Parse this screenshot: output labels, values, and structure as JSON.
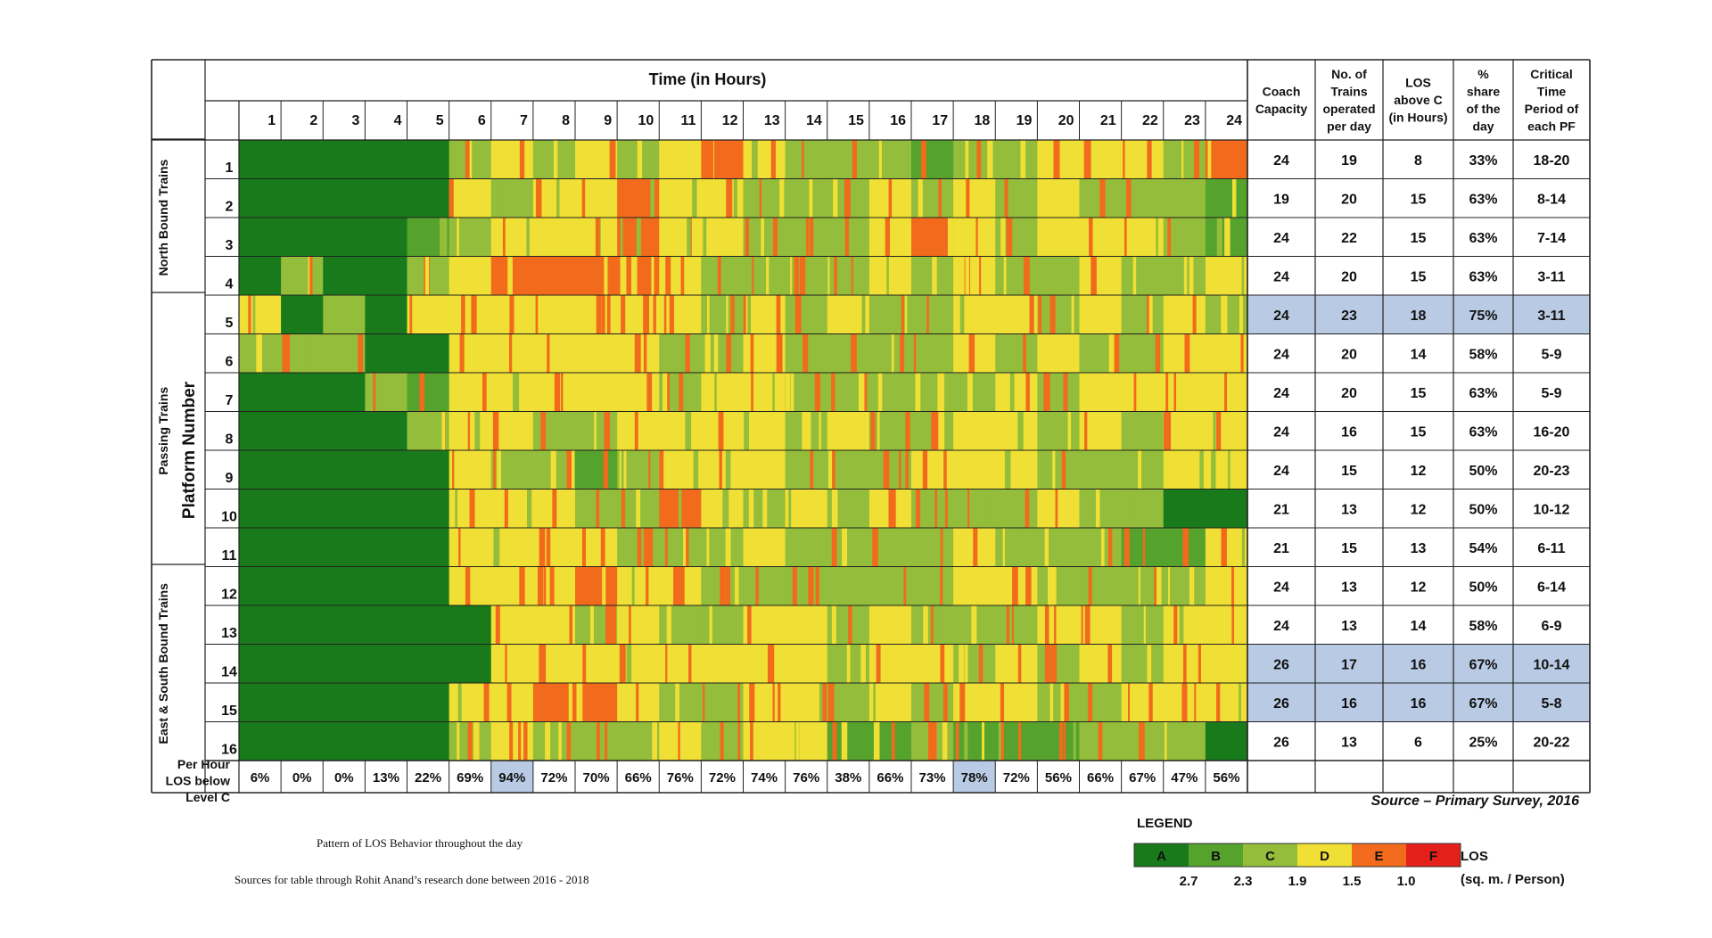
{
  "chart_data": {
    "type": "heatmap",
    "title": "Time (in Hours)",
    "xlabel": "Time (in Hours)",
    "ylabel": "Platform Number",
    "hours": [
      "1",
      "2",
      "3",
      "4",
      "5",
      "6",
      "7",
      "8",
      "9",
      "10",
      "11",
      "12",
      "13",
      "14",
      "15",
      "16",
      "17",
      "18",
      "19",
      "20",
      "21",
      "22",
      "23",
      "24"
    ],
    "platforms": [
      "1",
      "2",
      "3",
      "4",
      "5",
      "6",
      "7",
      "8",
      "9",
      "10",
      "11",
      "12",
      "13",
      "14",
      "15",
      "16"
    ],
    "groups": [
      {
        "label": "North Bound Trains",
        "rows": [
          1,
          4
        ]
      },
      {
        "label": "Passing Trains",
        "rows": [
          5,
          11
        ]
      },
      {
        "label": "East & South Bound Trains",
        "rows": [
          12,
          16
        ]
      }
    ],
    "matrix": [
      "AAAAACDCDCDEDCCCBCCDDDCE",
      "AAAAADCDDEDDCCCDCDCDCCCB",
      "AAAABCDDDEDDCCCDEDCDDDCB",
      "ACAACDEEEEDCCCCDCDCCDCCD",
      "DACADDDDDDDCDCDCCDDCDCDC",
      "CCCAADDDDDCCDCCCCDCDCCDD",
      "AAACBDDDDDCDDCCCCCDCDDDD",
      "AAAACDDCCDDDDCDCCDDCDCDD",
      "AAAAADCCBCDDDCCCDDDCCCDD",
      "AAAAADDDCCEDCDCDCCCDCCAA",
      "AAAAADDDDCCCDCCCCDCCCBBD",
      "AAAAADDDEDDCCCCCCDDCCCCD",
      "AAAAAADDCDCCDDCDCCCDDCDD",
      "AAAAAADDDDDDDDCDDCDCDCDD",
      "AAAAADDEEDCCDDCDCDDCCDDD",
      "AAAAACDCCCDCDDBBCBBBCCCA"
    ],
    "legend": {
      "title": "LEGEND",
      "levels": [
        "A",
        "B",
        "C",
        "D",
        "E",
        "F"
      ],
      "colors": {
        "A": "#187a1a",
        "B": "#55a22c",
        "C": "#93bd3a",
        "D": "#f0df34",
        "E": "#f26b1d",
        "F": "#e3201a"
      },
      "breaks": [
        "2.7",
        "2.3",
        "1.9",
        "1.5",
        "1.0"
      ],
      "unit_line1": "LOS",
      "unit_line2": "(sq. m. / Person)"
    },
    "per_hour_label": [
      "Per Hour",
      "LOS below",
      "Level C"
    ],
    "per_hour": [
      "6%",
      "0%",
      "0%",
      "13%",
      "22%",
      "69%",
      "94%",
      "72%",
      "70%",
      "66%",
      "76%",
      "72%",
      "74%",
      "76%",
      "38%",
      "66%",
      "73%",
      "78%",
      "72%",
      "56%",
      "66%",
      "67%",
      "47%",
      "56%"
    ],
    "per_hour_highlight": [
      7,
      18
    ],
    "table_headers": [
      [
        "Coach",
        "Capacity"
      ],
      [
        "No. of",
        "Trains",
        "operated",
        "per day"
      ],
      [
        "LOS",
        "above C",
        "(in Hours)"
      ],
      [
        "%",
        "share",
        "of the",
        "day"
      ],
      [
        "Critical",
        "Time",
        "Period of",
        "each PF"
      ]
    ],
    "table_rows": [
      [
        "24",
        "19",
        "8",
        "33%",
        "18-20"
      ],
      [
        "19",
        "20",
        "15",
        "63%",
        "8-14"
      ],
      [
        "24",
        "22",
        "15",
        "63%",
        "7-14"
      ],
      [
        "24",
        "20",
        "15",
        "63%",
        "3-11"
      ],
      [
        "24",
        "23",
        "18",
        "75%",
        "3-11"
      ],
      [
        "24",
        "20",
        "14",
        "58%",
        "5-9"
      ],
      [
        "24",
        "20",
        "15",
        "63%",
        "5-9"
      ],
      [
        "24",
        "16",
        "15",
        "63%",
        "16-20"
      ],
      [
        "24",
        "15",
        "12",
        "50%",
        "20-23"
      ],
      [
        "21",
        "13",
        "12",
        "50%",
        "10-12"
      ],
      [
        "21",
        "15",
        "13",
        "54%",
        "6-11"
      ],
      [
        "24",
        "13",
        "12",
        "50%",
        "6-14"
      ],
      [
        "24",
        "13",
        "14",
        "58%",
        "6-9"
      ],
      [
        "26",
        "17",
        "16",
        "67%",
        "10-14"
      ],
      [
        "26",
        "16",
        "16",
        "67%",
        "5-8"
      ],
      [
        "26",
        "13",
        "6",
        "25%",
        "20-22"
      ]
    ],
    "highlight_rows": [
      5,
      14,
      15
    ],
    "highlight_color": "#b9cbe4",
    "source": "Source – Primary Survey, 2016"
  },
  "captions": {
    "caption1": "Pattern of LOS Behavior throughout the day",
    "caption2": "Sources for table through Rohit Anand’s research done between 2016 - 2018"
  }
}
